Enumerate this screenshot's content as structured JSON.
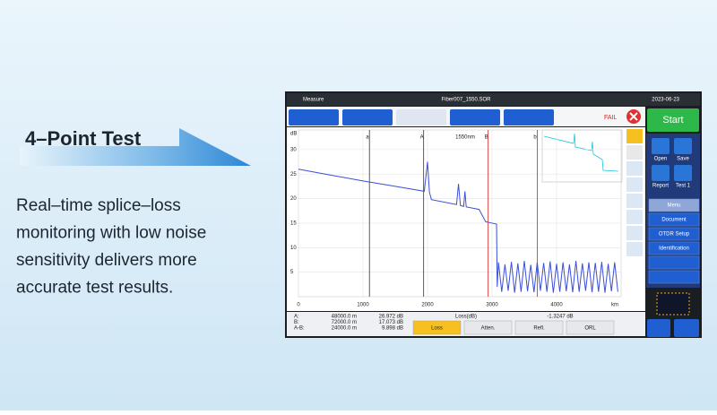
{
  "promo": {
    "title": "4–Point Test",
    "description": [
      "Real–time splice–loss",
      "monitoring with low noise",
      "sensitivity delivers more",
      "accurate test results."
    ]
  },
  "screen": {
    "app_title": "Measure",
    "file": "Fiber007_1550.SOR",
    "date": "2023-06-23",
    "status": "FAIL",
    "start": "Start",
    "side_buttons": [
      "Open",
      "Save",
      "Report",
      "Test 1"
    ],
    "menu": [
      "Menu",
      "Document",
      "OTDR Setup",
      "Identification"
    ],
    "wavelength": "1550nm",
    "cursors": [
      {
        "label": "a",
        "x": 1100,
        "color": "#333333"
      },
      {
        "label": "A",
        "x": 1940,
        "color": "#333333"
      },
      {
        "label": "B",
        "x": 2940,
        "color": "#d62020"
      },
      {
        "label": "b",
        "x": 3700,
        "color": "#d62020"
      }
    ],
    "info": {
      "rows": [
        [
          "A:",
          "48000.0 m",
          "26.972 dB"
        ],
        [
          "B:",
          "72000.0 m",
          "17.073 dB"
        ],
        [
          "A-B:",
          "24000.0 m",
          "9.898 dB"
        ]
      ],
      "loss_label": "Loss(dB)",
      "loss_value": "-1.3247 dB"
    },
    "buttons": [
      "Loss",
      "Atten.",
      "Refl.",
      "ORL"
    ],
    "trace": {
      "type": "line",
      "y_label": "dB",
      "x_label": "km",
      "xlim": [
        0,
        5000
      ],
      "ylim": [
        0,
        34
      ],
      "xticks": [
        0,
        1000,
        2000,
        3000,
        4000
      ],
      "yticks": [
        5,
        10,
        15,
        20,
        25,
        30
      ],
      "x": [
        0,
        500,
        1000,
        1500,
        1950,
        2000,
        2030,
        2060,
        2450,
        2480,
        2510,
        2560,
        2580,
        2600,
        2800,
        2900,
        3000,
        3070,
        3080,
        3100,
        3150,
        3200,
        3250,
        3300,
        3350,
        3400,
        3450,
        3500,
        3550,
        3600,
        3650,
        3700,
        3750,
        3800,
        3850,
        3900,
        3950,
        4000,
        4050,
        4100,
        4150,
        4200,
        4250,
        4300,
        4350,
        4400,
        4450,
        4500,
        4550,
        4600,
        4650,
        4700,
        4750,
        4800,
        4850,
        4900,
        4950
      ],
      "series": [
        {
          "color": "#3b4fd8",
          "values": [
            26,
            24.8,
            23.6,
            22.5,
            21.5,
            27.5,
            21.3,
            19.8,
            18.8,
            23,
            18.6,
            18.4,
            21.5,
            18.3,
            17.8,
            15.3,
            15,
            14.8,
            2,
            7,
            1,
            6.6,
            1.2,
            7.1,
            0.8,
            6.8,
            1,
            7.3,
            1.1,
            6.5,
            0.9,
            7,
            1.2,
            6.9,
            1,
            7.2,
            0.8,
            6.7,
            1,
            7,
            1.1,
            6.6,
            0.9,
            7.3,
            1,
            6.8,
            1.2,
            7,
            0.9,
            6.9,
            1,
            7.1,
            0.8,
            6.7,
            1.1,
            7,
            1
          ]
        }
      ]
    }
  }
}
